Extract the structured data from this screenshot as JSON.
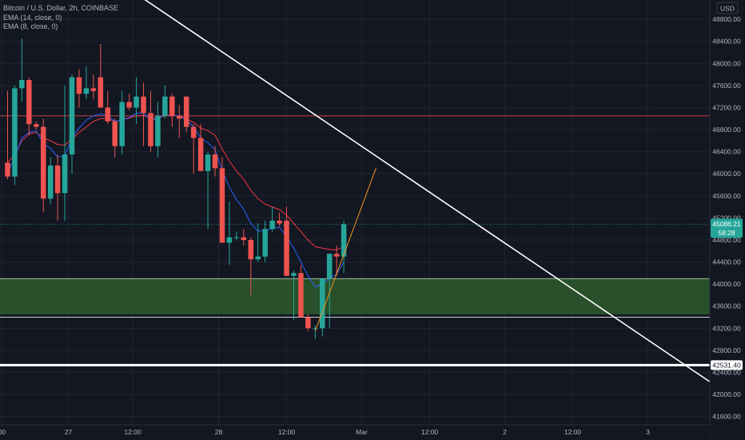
{
  "legend": {
    "symbol": "Bitcoin / U.S. Dollar, 2h, COINBASE",
    "ema14": "EMA (14, close, 0)",
    "ema8": "EMA (8, close, 0)"
  },
  "currency": "USD",
  "chart_data": {
    "type": "candlestick",
    "y_range": [
      41450,
      49150
    ],
    "y_ticks": [
      41600,
      42000,
      42400,
      42800,
      43200,
      43600,
      44000,
      44400,
      44800,
      45200,
      45600,
      46000,
      46400,
      46800,
      47200,
      47600,
      48000,
      48400,
      48800
    ],
    "x_labels": [
      {
        "label": "00",
        "bar": -0.3
      },
      {
        "label": "27",
        "bar": 9
      },
      {
        "label": "12:00",
        "bar": 18
      },
      {
        "label": "28",
        "bar": 30
      },
      {
        "label": "12:00",
        "bar": 39.5
      },
      {
        "label": "Mar",
        "bar": 50
      },
      {
        "label": "12:00",
        "bar": 59.5
      },
      {
        "label": "2",
        "bar": 70
      },
      {
        "label": "12:00",
        "bar": 79.5
      },
      {
        "label": "3",
        "bar": 90
      }
    ],
    "candles": [
      {
        "o": 46200,
        "h": 47500,
        "l": 45900,
        "c": 45950
      },
      {
        "o": 45950,
        "h": 47600,
        "l": 45800,
        "c": 47550
      },
      {
        "o": 47550,
        "h": 48450,
        "l": 47300,
        "c": 47700
      },
      {
        "o": 47700,
        "h": 47750,
        "l": 46700,
        "c": 46900
      },
      {
        "o": 46900,
        "h": 46950,
        "l": 46800,
        "c": 46850
      },
      {
        "o": 46850,
        "h": 47000,
        "l": 45300,
        "c": 45550
      },
      {
        "o": 45550,
        "h": 46300,
        "l": 45450,
        "c": 46150
      },
      {
        "o": 46150,
        "h": 46350,
        "l": 45150,
        "c": 45650
      },
      {
        "o": 45650,
        "h": 47600,
        "l": 45150,
        "c": 46350
      },
      {
        "o": 46350,
        "h": 47800,
        "l": 46000,
        "c": 47750
      },
      {
        "o": 47750,
        "h": 47900,
        "l": 47200,
        "c": 47450
      },
      {
        "o": 47450,
        "h": 47950,
        "l": 47350,
        "c": 47550
      },
      {
        "o": 47550,
        "h": 47800,
        "l": 47350,
        "c": 47500
      },
      {
        "o": 47750,
        "h": 48350,
        "l": 47200,
        "c": 47200
      },
      {
        "o": 47200,
        "h": 47500,
        "l": 46900,
        "c": 46950
      },
      {
        "o": 46950,
        "h": 47000,
        "l": 46300,
        "c": 46500
      },
      {
        "o": 46500,
        "h": 47500,
        "l": 46350,
        "c": 47300
      },
      {
        "o": 47300,
        "h": 47450,
        "l": 47150,
        "c": 47200
      },
      {
        "o": 47200,
        "h": 47750,
        "l": 46900,
        "c": 47400
      },
      {
        "o": 47400,
        "h": 47650,
        "l": 46500,
        "c": 47100
      },
      {
        "o": 47100,
        "h": 47500,
        "l": 46400,
        "c": 46500
      },
      {
        "o": 46500,
        "h": 47300,
        "l": 46300,
        "c": 47050
      },
      {
        "o": 47050,
        "h": 47600,
        "l": 47000,
        "c": 47400
      },
      {
        "o": 47400,
        "h": 47450,
        "l": 46850,
        "c": 47050
      },
      {
        "o": 47050,
        "h": 47250,
        "l": 46650,
        "c": 47000
      },
      {
        "o": 47400,
        "h": 47400,
        "l": 46750,
        "c": 46850
      },
      {
        "o": 46850,
        "h": 46900,
        "l": 46000,
        "c": 46650
      },
      {
        "o": 46650,
        "h": 46900,
        "l": 46050,
        "c": 46050
      },
      {
        "o": 46050,
        "h": 46400,
        "l": 45000,
        "c": 46350
      },
      {
        "o": 46350,
        "h": 46500,
        "l": 45950,
        "c": 46100
      },
      {
        "o": 46100,
        "h": 46300,
        "l": 44800,
        "c": 44750
      },
      {
        "o": 44750,
        "h": 45500,
        "l": 44350,
        "c": 44850
      },
      {
        "o": 44850,
        "h": 44950,
        "l": 44800,
        "c": 44850
      },
      {
        "o": 44850,
        "h": 45000,
        "l": 44700,
        "c": 44800
      },
      {
        "o": 44800,
        "h": 44850,
        "l": 43800,
        "c": 44450
      },
      {
        "o": 44450,
        "h": 45100,
        "l": 44400,
        "c": 44500
      },
      {
        "o": 44500,
        "h": 45150,
        "l": 44400,
        "c": 45000
      },
      {
        "o": 45000,
        "h": 45400,
        "l": 44950,
        "c": 45150
      },
      {
        "o": 45150,
        "h": 45300,
        "l": 45050,
        "c": 45100
      },
      {
        "o": 45150,
        "h": 45400,
        "l": 44150,
        "c": 44150
      },
      {
        "o": 44150,
        "h": 44250,
        "l": 43350,
        "c": 44200
      },
      {
        "o": 44200,
        "h": 44350,
        "l": 43400,
        "c": 43400
      },
      {
        "o": 43400,
        "h": 43450,
        "l": 43150,
        "c": 43200
      },
      {
        "o": 43200,
        "h": 43250,
        "l": 43000,
        "c": 43200
      },
      {
        "o": 43200,
        "h": 44100,
        "l": 43050,
        "c": 44100
      },
      {
        "o": 44100,
        "h": 44550,
        "l": 43200,
        "c": 44550
      },
      {
        "o": 44550,
        "h": 44700,
        "l": 44150,
        "c": 44500
      },
      {
        "o": 44500,
        "h": 45150,
        "l": 44200,
        "c": 45086.21
      }
    ],
    "ema14": [
      46200,
      46350,
      46600,
      46720,
      46750,
      46650,
      46600,
      46530,
      46520,
      46630,
      46750,
      46850,
      46950,
      47000,
      47000,
      46950,
      46980,
      47010,
      47050,
      47060,
      47000,
      47010,
      47050,
      47050,
      47050,
      47000,
      46930,
      46830,
      46780,
      46700,
      46450,
      46230,
      46050,
      45900,
      45700,
      45550,
      45450,
      45400,
      45350,
      45250,
      45100,
      44950,
      44800,
      44680,
      44650,
      44630,
      44620,
      44680
    ],
    "ema8": [
      46000,
      46300,
      46650,
      46750,
      46780,
      46550,
      46460,
      46300,
      46330,
      46650,
      46830,
      46970,
      47050,
      47090,
      47050,
      46950,
      46980,
      47020,
      47100,
      47100,
      46970,
      46990,
      47070,
      47060,
      47050,
      46980,
      46850,
      46650,
      46560,
      46440,
      46060,
      45760,
      45530,
      45360,
      45100,
      44960,
      44970,
      45010,
      45030,
      44860,
      44650,
      44400,
      44150,
      43950,
      44000,
      44100,
      44180,
      44400
    ],
    "current_price": {
      "value": "45086.21",
      "countdown": "58:28",
      "color": "#26a69a"
    },
    "support_level": {
      "value": 42531.4,
      "label": "42531.40"
    },
    "horizontal_line": 47050,
    "zone": {
      "top": 44100,
      "bottom": 43450
    },
    "zone_bottom_line": 43400,
    "trendline": {
      "from": {
        "bar": 13.5,
        "price": 49700
      },
      "to": {
        "bar": 99,
        "price": 42200
      }
    },
    "projection": {
      "from": {
        "bar": 43.5,
        "price": 43150
      },
      "to": {
        "bar": 52,
        "price": 46100
      }
    },
    "colors": {
      "up": "#26a69a",
      "down": "#ef5350",
      "ema14": "#f23645",
      "ema8": "#2962ff",
      "zone": "#2e5a2b",
      "projection": "#f7931a"
    }
  }
}
